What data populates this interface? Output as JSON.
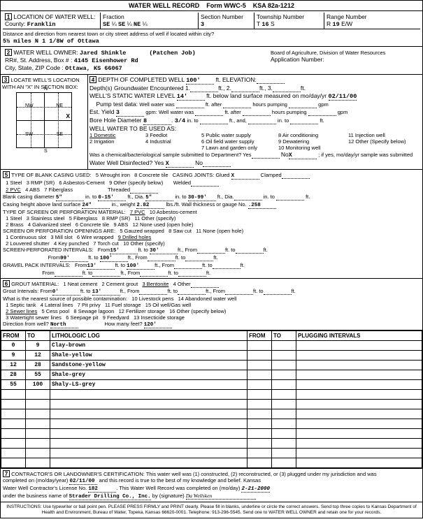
{
  "form_header": {
    "title": "WATER WELL RECORD",
    "form_id": "Form WWC-5",
    "ksa": "KSA 82a-1212"
  },
  "section1": {
    "heading": "LOCATION OF WATER WELL:",
    "county_label": "County:",
    "county": "Franklin",
    "fraction_label": "Fraction",
    "f1": "SE",
    "f2": "SE",
    "f3": "NE",
    "sec_label": "Section Number",
    "sec": "3",
    "twp_label": "Township Number",
    "twp": "16",
    "twp_dir": "S",
    "rng_label": "Range Number",
    "rng": "19",
    "rng_dir": "E/W",
    "dist_label": "Distance and direction from nearest town or city street address of well if located within city?",
    "dist": "5½ miles N 1 1/8W of Ottawa"
  },
  "section2": {
    "heading": "WATER WELL OWNER:",
    "owner": "Jared Shinkle",
    "job": "(Patchen Job)",
    "addr_label": "RR#, St. Address, Box # :",
    "addr": "4145 Eisenhower Rd",
    "city_label": "City, State, ZIP Code :",
    "city": "Ottawa, KS 66067",
    "board": "Board of Agriculture, Division of Water Resources",
    "appnum_label": "Application Number:"
  },
  "section3": {
    "heading": "LOCATE WELL'S LOCATION WITH AN \"X\" IN SECTION BOX:",
    "nw": "NW",
    "ne": "NE",
    "sw": "SW",
    "se": "SE",
    "n": "N",
    "s": "S",
    "e": "E",
    "w": "W",
    "mile": "1 Mile"
  },
  "section4": {
    "heading": "DEPTH OF COMPLETED WELL",
    "depth": "100'",
    "elev_label": "ft. ELEVATION:",
    "gw_label": "Depth(s) Groundwater Encountered",
    "gw1": "1",
    "gw2": "2",
    "gw3": "3",
    "static_label": "WELL'S STATIC WATER LEVEL",
    "static": "14'",
    "static_unit": "ft. below land surface measured on mo/day/yr",
    "static_date": "02/11/00",
    "pump_label": "Pump test data:",
    "pump_text": "Well water was _____ ft. after _____ hours pumping _____ gpm",
    "yield_label": "Est. Yield",
    "yield": "3",
    "yield_unit": "gpm: Well water was _____ ft. after _____ hours pumping _____ gpm",
    "bore_label": "Bore Hole Diameter",
    "bore": "8",
    "bore2": "3/4",
    "bore_unit": "in. to _____ ft., and, _____ in. to _____ ft.",
    "use_label": "WELL WATER TO BE USED AS:",
    "u1": "1 Domestic",
    "u2": "2 Irrigation",
    "u3": "3 Feedlot",
    "u4": "4 Industrial",
    "u5": "5 Public water supply",
    "u6": "6 Oil field water supply",
    "u7": "7 Lawn and garden only",
    "u8": "8 Air conditioning",
    "u9": "9 Dewatering",
    "u10": "10 Monitoring well",
    "u11": "11 Injection well",
    "u12": "12 Other (Specify below)",
    "chem_label": "Was a chemical/bacteriological sample submitted to Department? Yes",
    "chem_no": "No",
    "chem_x": "X",
    "chem_text": "; if yes, mo/day/yr sample was submitted",
    "disinfect_label": "Water Well Disinfected?",
    "disinfect_yes": "Yes",
    "disinfect_x": "X",
    "disinfect_no": "No"
  },
  "section5": {
    "heading": "TYPE OF BLANK CASING USED:",
    "c1": "1 Steel",
    "c2": "2 PVC",
    "c3": "3 RMP (SR)",
    "c4": "4 ABS",
    "c5": "5 Wrought iron",
    "c6": "6 Asbestos-Cement",
    "c7": "7 Fiberglass",
    "c8": "8 Concrete tile",
    "c9": "9 Other (specify below)",
    "joints_label": "CASING JOINTS:",
    "j1": "Glued",
    "jx": "X",
    "j2": "Clamped",
    "j3": "Welded",
    "j4": "Threaded",
    "dia_label": "Blank casing diameter",
    "dia_v": "5\"",
    "dia_r1": "0-15'",
    "dia_d2": "5\"",
    "dia_r2": "30-99'",
    "height_label": "Casing height above land surface",
    "height": "24\"",
    "weight_label": "in., weight",
    "weight": "2.82",
    "weight_unit": "lbs./ft. Wall thickness or gauge No.",
    "gauge": ".258",
    "screen_label": "TYPE OF SCREEN OR PERFORATION MATERIAL:",
    "s1": "1 Steel",
    "s2": "2 Brass",
    "s3": "3 Stainless steel",
    "s4": "4 Galvanized steel",
    "s5": "5 Fiberglass",
    "s6": "6 Concrete tile",
    "s7": "7 PVC",
    "s8": "8 RMP (SR)",
    "s9": "9 ABS",
    "s10": "10 Asbestos-cement",
    "s11": "11 Other (specify)",
    "s12": "12 None used (open hole)",
    "open_label": "SCREEN OR PERFORATION OPENINGS ARE:",
    "o1": "1 Continuous slot",
    "o2": "2 Louvered shutter",
    "o3": "3 Mill slot",
    "o4": "4 Key punched",
    "o5": "5 Gauzed wrapped",
    "o6": "6 Wire wrapped",
    "o7": "7 Torch cut",
    "o8": "8 Saw cut",
    "o9": "9 Drilled holes",
    "o10": "10 Other (specify)",
    "o11": "11 None (open hole)",
    "perf_label": "SCREEN-PERFORATED INTERVALS:",
    "p1f": "15'",
    "p1t": "30'",
    "p2f": "99'",
    "p2t": "100'",
    "gravel_label": "GRAVEL PACK INTERVALS:",
    "g1f": "13'",
    "g1t": "100'"
  },
  "section6": {
    "heading": "GROUT MATERIAL:",
    "g1": "1 Neat cement",
    "g2": "2 Cement grout",
    "g3": "3 Bentonite",
    "g4": "4 Other",
    "int_label": "Grout Intervals:",
    "int_f": "0'",
    "int_t": "13'",
    "contam_label": "What is the nearest source of possible contamination:",
    "n1": "1 Septic tank",
    "n2": "2 Sewer lines",
    "n3": "3 Watertight sewer lines",
    "n4": "4 Lateral lines",
    "n5": "5 Cess pool",
    "n6": "6 Seepage pit",
    "n7": "7 Pit privy",
    "n8": "8 Sewage lagoon",
    "n9": "9 Feedyard",
    "n10": "10 Livestock pens",
    "n11": "11 Fuel storage",
    "n12": "12 Fertilizer storage",
    "n13": "13 Insecticide storage",
    "n14": "14 Abandoned water well",
    "n15": "15 Oil well/Gas well",
    "n16": "16 Other (specify below)",
    "dir_label": "Direction from well?",
    "dir": "North",
    "feet_label": "How many feet?",
    "feet": "120'"
  },
  "log": {
    "h_from": "FROM",
    "h_to": "TO",
    "h_litho": "LITHOLOGIC LOG",
    "h_plug": "PLUGGING INTERVALS",
    "rows": [
      {
        "from": "0",
        "to": "9",
        "litho": "Clay-brown"
      },
      {
        "from": "9",
        "to": "12",
        "litho": "Shale-yellow"
      },
      {
        "from": "12",
        "to": "28",
        "litho": "Sandstone-yellow"
      },
      {
        "from": "28",
        "to": "55",
        "litho": "Shale-grey"
      },
      {
        "from": "55",
        "to": "100",
        "litho": "Shaly-LS-grey"
      },
      {
        "from": "",
        "to": "",
        "litho": ""
      },
      {
        "from": "",
        "to": "",
        "litho": ""
      },
      {
        "from": "",
        "to": "",
        "litho": ""
      },
      {
        "from": "",
        "to": "",
        "litho": ""
      },
      {
        "from": "",
        "to": "",
        "litho": ""
      },
      {
        "from": "",
        "to": "",
        "litho": ""
      },
      {
        "from": "",
        "to": "",
        "litho": ""
      },
      {
        "from": "",
        "to": "",
        "litho": ""
      }
    ]
  },
  "section7": {
    "heading": "CONTRACTOR'S OR LANDOWNER'S CERTIFICATION:",
    "text1": "This water well was (1) constructed, (2) reconstructed, or (3) plugged under my jurisdiction and was",
    "completed_label": "completed on (mo/day/year)",
    "completed": "02/11/00",
    "text2": "and this record is true to the best of my knowledge and belief. Kansas",
    "lic_label": "Water Well Contractor's License No.",
    "lic": "182",
    "text3": "This Water Well Record was completed on (mo/day)",
    "rec_date": "2-21-2000",
    "biz_label": "under the business name of",
    "biz": "Strader Drilling Co., Inc.",
    "sig_label": "by (signature)"
  },
  "instructions": "INSTRUCTIONS: Use typewriter or ball point pen. PLEASE PRESS FIRMLY and PRINT clearly. Please fill in blanks, underline or circle the correct answers. Send top three copies to Kansas Department of Health and Environment, Bureau of Water, Topeka, Kansas 66620-0001. Telephone: 913-296-5545. Send one to WATER WELL OWNER and retain one for your records.",
  "side": "OFFICE USE ONLY    T    R    E/W    SEC    ¼    ¼    ¼"
}
